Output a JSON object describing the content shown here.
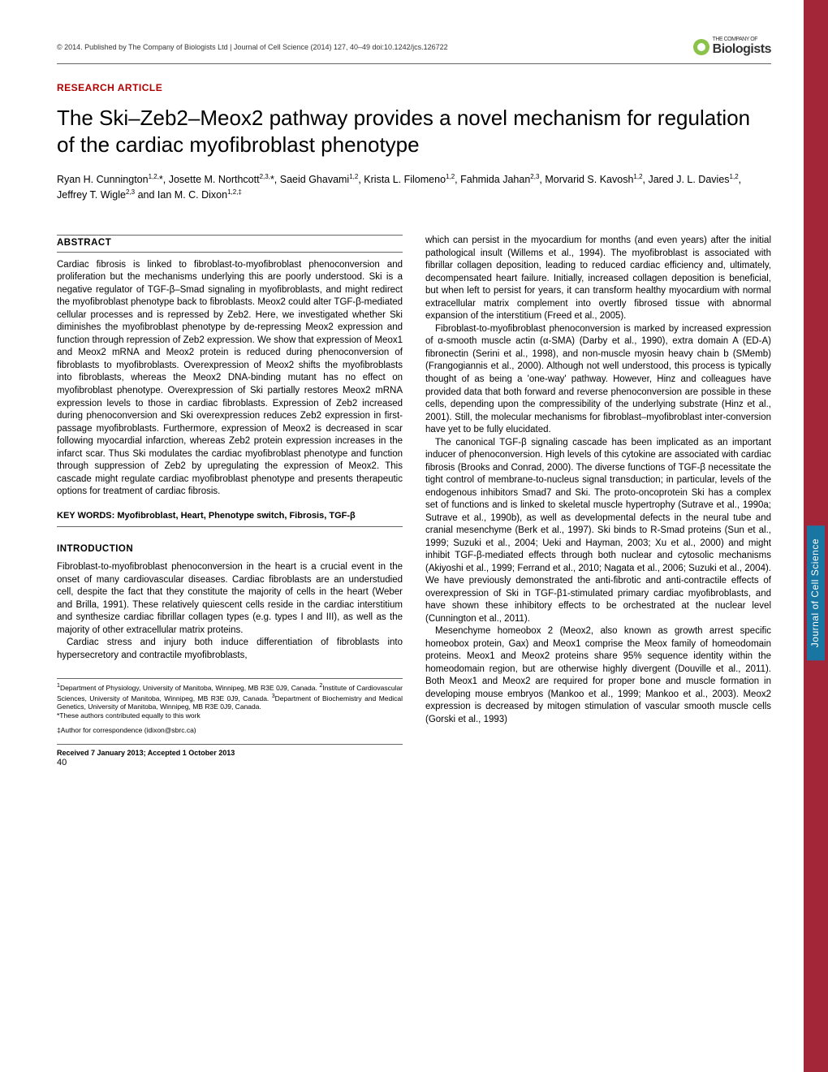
{
  "header": {
    "copyright": "© 2014. Published by The Company of Biologists Ltd | Journal of Cell Science (2014) 127, 40–49 doi:10.1242/jcs.126722",
    "company_small": "THE COMPANY OF",
    "company": "Biologists"
  },
  "article": {
    "type": "RESEARCH ARTICLE",
    "title": "The Ski–Zeb2–Meox2 pathway provides a novel mechanism for regulation of the cardiac myofibroblast phenotype",
    "authors": "Ryan H. Cunnington1,2,*, Josette M. Northcott2,3,*, Saeid Ghavami1,2, Krista L. Filomeno1,2, Fahmida Jahan2,3, Morvarid S. Kavosh1,2, Jared J. L. Davies1,2, Jeffrey T. Wigle2,3 and Ian M. C. Dixon1,2,‡"
  },
  "abstract": {
    "head": "ABSTRACT",
    "text": "Cardiac fibrosis is linked to fibroblast-to-myofibroblast phenoconversion and proliferation but the mechanisms underlying this are poorly understood. Ski is a negative regulator of TGF-β–Smad signaling in myofibroblasts, and might redirect the myofibroblast phenotype back to fibroblasts. Meox2 could alter TGF-β-mediated cellular processes and is repressed by Zeb2. Here, we investigated whether Ski diminishes the myofibroblast phenotype by de-repressing Meox2 expression and function through repression of Zeb2 expression. We show that expression of Meox1 and Meox2 mRNA and Meox2 protein is reduced during phenoconversion of fibroblasts to myofibroblasts. Overexpression of Meox2 shifts the myofibroblasts into fibroblasts, whereas the Meox2 DNA-binding mutant has no effect on myofibroblast phenotype. Overexpression of Ski partially restores Meox2 mRNA expression levels to those in cardiac fibroblasts. Expression of Zeb2 increased during phenoconversion and Ski overexpression reduces Zeb2 expression in first-passage myofibroblasts. Furthermore, expression of Meox2 is decreased in scar following myocardial infarction, whereas Zeb2 protein expression increases in the infarct scar. Thus Ski modulates the cardiac myofibroblast phenotype and function through suppression of Zeb2 by upregulating the expression of Meox2. This cascade might regulate cardiac myofibroblast phenotype and presents therapeutic options for treatment of cardiac fibrosis."
  },
  "keywords": "KEY WORDS: Myofibroblast, Heart, Phenotype switch, Fibrosis, TGF-β",
  "introduction": {
    "head": "INTRODUCTION",
    "p1": "Fibroblast-to-myofibroblast phenoconversion in the heart is a crucial event in the onset of many cardiovascular diseases. Cardiac fibroblasts are an understudied cell, despite the fact that they constitute the majority of cells in the heart (Weber and Brilla, 1991). These relatively quiescent cells reside in the cardiac interstitium and synthesize cardiac fibrillar collagen types (e.g. types I and III), as well as the majority of other extracellular matrix proteins.",
    "p2": "Cardiac stress and injury both induce differentiation of fibroblasts into hypersecretory and contractile myofibroblasts,"
  },
  "col2": {
    "p1": "which can persist in the myocardium for months (and even years) after the initial pathological insult (Willems et al., 1994). The myofibroblast is associated with fibrillar collagen deposition, leading to reduced cardiac efficiency and, ultimately, decompensated heart failure. Initially, increased collagen deposition is beneficial, but when left to persist for years, it can transform healthy myocardium with normal extracellular matrix complement into overtly fibrosed tissue with abnormal expansion of the interstitium (Freed et al., 2005).",
    "p2": "Fibroblast-to-myofibroblast phenoconversion is marked by increased expression of α-smooth muscle actin (α-SMA) (Darby et al., 1990), extra domain A (ED-A) fibronectin (Serini et al., 1998), and non-muscle myosin heavy chain b (SMemb) (Frangogiannis et al., 2000). Although not well understood, this process is typically thought of as being a 'one-way' pathway. However, Hinz and colleagues have provided data that both forward and reverse phenoconversion are possible in these cells, depending upon the compressibility of the underlying substrate (Hinz et al., 2001). Still, the molecular mechanisms for fibroblast–myofibroblast inter-conversion have yet to be fully elucidated.",
    "p3": "The canonical TGF-β signaling cascade has been implicated as an important inducer of phenoconversion. High levels of this cytokine are associated with cardiac fibrosis (Brooks and Conrad, 2000). The diverse functions of TGF-β necessitate the tight control of membrane-to-nucleus signal transduction; in particular, levels of the endogenous inhibitors Smad7 and Ski. The proto-oncoprotein Ski has a complex set of functions and is linked to skeletal muscle hypertrophy (Sutrave et al., 1990a; Sutrave et al., 1990b), as well as developmental defects in the neural tube and cranial mesenchyme (Berk et al., 1997). Ski binds to R-Smad proteins (Sun et al., 1999; Suzuki et al., 2004; Ueki and Hayman, 2003; Xu et al., 2000) and might inhibit TGF-β-mediated effects through both nuclear and cytosolic mechanisms (Akiyoshi et al., 1999; Ferrand et al., 2010; Nagata et al., 2006; Suzuki et al., 2004). We have previously demonstrated the anti-fibrotic and anti-contractile effects of overexpression of Ski in TGF-β1-stimulated primary cardiac myofibroblasts, and have shown these inhibitory effects to be orchestrated at the nuclear level (Cunnington et al., 2011).",
    "p4": "Mesenchyme homeobox 2 (Meox2, also known as growth arrest specific homeobox protein, Gax) and Meox1 comprise the Meox family of homeodomain proteins. Meox1 and Meox2 proteins share 95% sequence identity within the homeodomain region, but are otherwise highly divergent (Douville et al., 2011). Both Meox1 and Meox2 are required for proper bone and muscle formation in developing mouse embryos (Mankoo et al., 1999; Mankoo et al., 2003). Meox2 expression is decreased by mitogen stimulation of vascular smooth muscle cells (Gorski et al., 1993)"
  },
  "affiliations": "1Department of Physiology, University of Manitoba, Winnipeg, MB R3E 0J9, Canada. 2Institute of Cardiovascular Sciences, University of Manitoba, Winnipeg, MB R3E 0J9, Canada. 3Department of Biochemistry and Medical Genetics, University of Manitoba, Winnipeg, MB R3E 0J9, Canada.",
  "equal": "*These authors contributed equally to this work",
  "correspondence": "‡Author for correspondence (idixon@sbrc.ca)",
  "received": "Received 7 January 2013; Accepted 1 October 2013",
  "page_num": "40",
  "side_label": "Journal of Cell Science",
  "colors": {
    "accent_red": "#b00000",
    "side_tab": "#a32638",
    "side_label_bg": "#1976a3",
    "logo_green": "#8bc34a"
  }
}
